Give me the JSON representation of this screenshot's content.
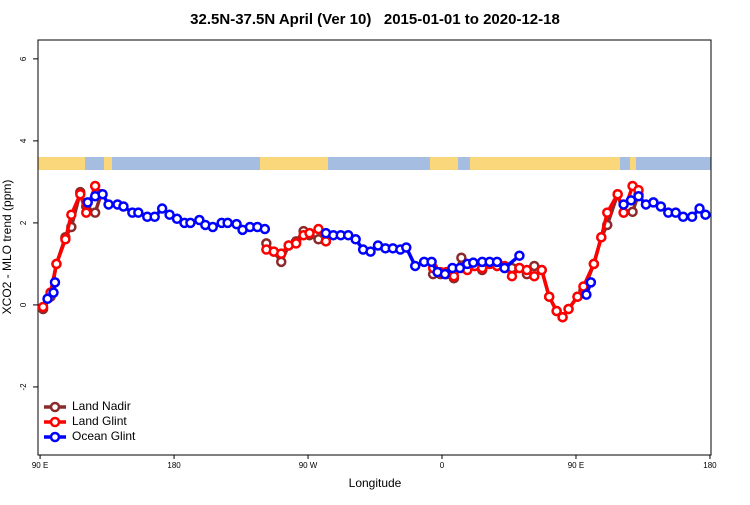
{
  "chart_data": {
    "type": "line",
    "title": "32.5N-37.5N April (Ver 10)   2015-01-01 to 2020-12-18",
    "xlabel": "Longitude",
    "ylabel": "XCO2 - MLO trend (ppm)",
    "xlim": [
      88.6,
      540.7
    ],
    "ylim": [
      -3.66,
      6.46
    ],
    "xticks": [
      {
        "value": 90,
        "label": "90 E"
      },
      180,
      {
        "value": 270,
        "label": "90 W"
      },
      {
        "value": 360,
        "label": "0"
      },
      {
        "value": 450,
        "label": "90 E"
      },
      {
        "value": 540,
        "label": "180"
      }
    ],
    "yticks": [
      -2,
      0,
      2,
      4,
      6
    ],
    "legend": "bottom-left",
    "series": [
      {
        "name": "Land Nadir",
        "color": "#8b2a2a",
        "x": [
          92,
          97,
          101,
          107,
          111,
          117,
          121,
          127,
          131,
          null,
          242,
          247,
          252,
          257,
          262,
          267,
          271,
          277,
          282,
          null,
          354,
          359,
          363,
          368,
          373,
          377,
          382,
          387,
          392,
          397,
          402,
          407,
          412,
          417,
          422,
          427,
          432,
          437,
          441,
          445,
          451,
          455,
          462,
          467,
          471,
          478,
          482,
          488,
          492
        ],
        "values": [
          -0.1,
          0.2,
          1.0,
          1.65,
          1.9,
          2.75,
          2.4,
          2.25,
          2.7,
          null,
          1.5,
          1.3,
          1.05,
          1.45,
          1.55,
          1.8,
          1.7,
          1.6,
          1.55,
          null,
          0.75,
          0.75,
          0.75,
          0.65,
          1.15,
          0.9,
          0.95,
          0.85,
          1.0,
          0.95,
          0.9,
          0.9,
          0.9,
          0.75,
          0.95,
          0.85,
          0.2,
          -0.15,
          -0.3,
          -0.1,
          0.2,
          0.35,
          1.0,
          1.65,
          1.95,
          2.7,
          2.25,
          2.27,
          2.7
        ]
      },
      {
        "name": "Land Glint",
        "color": "#ff0000",
        "x": [
          92,
          97,
          101,
          107,
          111,
          117,
          121,
          127,
          131,
          null,
          242,
          247,
          252,
          257,
          262,
          267,
          271,
          277,
          282,
          null,
          354,
          359,
          363,
          368,
          373,
          377,
          382,
          387,
          392,
          397,
          402,
          407,
          412,
          417,
          422,
          427,
          432,
          437,
          441,
          445,
          451,
          455,
          462,
          467,
          471,
          478,
          482,
          488,
          492
        ],
        "values": [
          -0.05,
          0.3,
          1.0,
          1.6,
          2.2,
          2.7,
          2.25,
          2.9,
          2.7,
          null,
          1.35,
          1.3,
          1.25,
          1.45,
          1.5,
          1.7,
          1.75,
          1.85,
          1.55,
          null,
          0.9,
          0.8,
          0.8,
          0.7,
          0.9,
          0.85,
          0.95,
          0.9,
          1.0,
          0.95,
          0.95,
          0.7,
          0.9,
          0.85,
          0.7,
          0.85,
          0.2,
          -0.15,
          -0.3,
          -0.1,
          0.2,
          0.45,
          1.0,
          1.65,
          2.25,
          2.7,
          2.25,
          2.9,
          2.8
        ]
      },
      {
        "name": "Ocean Glint",
        "color": "#0000ff",
        "x": [
          95,
          99,
          100,
          null,
          122,
          127,
          132,
          136,
          142,
          146,
          152,
          156,
          162,
          167,
          172,
          177,
          182,
          187,
          191,
          197,
          201,
          206,
          212,
          216,
          222,
          226,
          231,
          236,
          241,
          null,
          282,
          287,
          292,
          297,
          302,
          307,
          312,
          317,
          322,
          327,
          332,
          336,
          342,
          348,
          353,
          357,
          362,
          367,
          372,
          377,
          381,
          387,
          392,
          397,
          402,
          412,
          null,
          457,
          460,
          null,
          482,
          487,
          492,
          497,
          502,
          507,
          512,
          517,
          522,
          528,
          533,
          537
        ],
        "values": [
          0.15,
          0.3,
          0.55,
          null,
          2.5,
          2.65,
          2.7,
          2.45,
          2.45,
          2.4,
          2.25,
          2.25,
          2.15,
          2.15,
          2.35,
          2.2,
          2.1,
          2.0,
          2.0,
          2.07,
          1.95,
          1.9,
          2.0,
          2.0,
          1.97,
          1.83,
          1.9,
          1.9,
          1.85,
          null,
          1.75,
          1.7,
          1.7,
          1.7,
          1.6,
          1.35,
          1.3,
          1.45,
          1.38,
          1.38,
          1.35,
          1.4,
          0.95,
          1.05,
          1.05,
          0.8,
          0.75,
          0.9,
          0.9,
          1.0,
          1.03,
          1.05,
          1.05,
          1.05,
          0.9,
          1.2,
          null,
          0.25,
          0.55,
          null,
          2.45,
          2.55,
          2.65,
          2.45,
          2.5,
          2.4,
          2.25,
          2.25,
          2.15,
          2.15,
          2.35,
          2.2
        ]
      }
    ]
  }
}
